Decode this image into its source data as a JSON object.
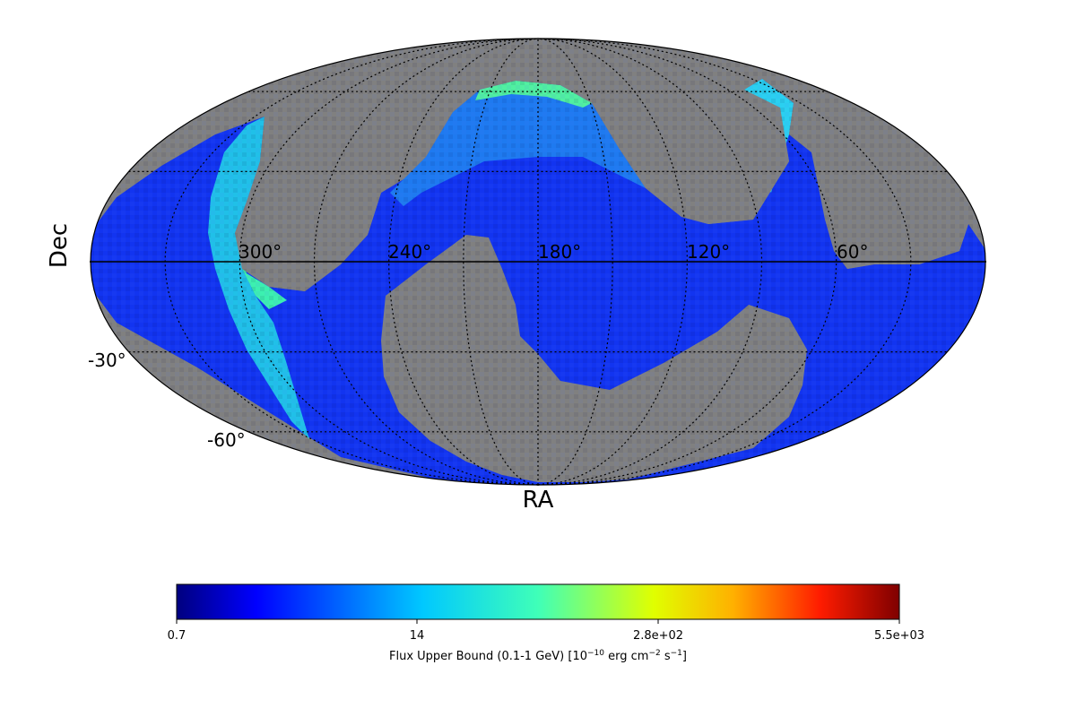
{
  "map": {
    "projection": "mollweide",
    "xlabel": "RA",
    "ylabel": "Dec",
    "ra_tick_labels": [
      "300°",
      "240°",
      "180°",
      "120°",
      "60°"
    ],
    "dec_tick_labels": [
      "-30°",
      "-60°"
    ],
    "ra_graticule_deg": [
      0,
      30,
      60,
      90,
      120,
      150,
      180,
      210,
      240,
      270,
      300,
      330,
      360
    ],
    "dec_graticule_deg": [
      -60,
      -30,
      0,
      30,
      60
    ],
    "background_color": "#808080",
    "colormap": "jet",
    "data_description": "Sky map of flux upper bounds; covered region shown in blue-to-red colour scale, uncovered sky in grey"
  },
  "colorbar": {
    "label_pre": "Flux Upper Bound (0.1-1 GeV) [10",
    "label_exp1": "−10",
    "label_mid": " erg cm",
    "label_exp2": "−2",
    "label_mid2": " s",
    "label_exp3": "−1",
    "label_post": "]",
    "ticks": [
      "0.7",
      "14",
      "2.8e+02",
      "5.5e+03"
    ],
    "scale": "log",
    "range": [
      0.7,
      5500
    ]
  }
}
